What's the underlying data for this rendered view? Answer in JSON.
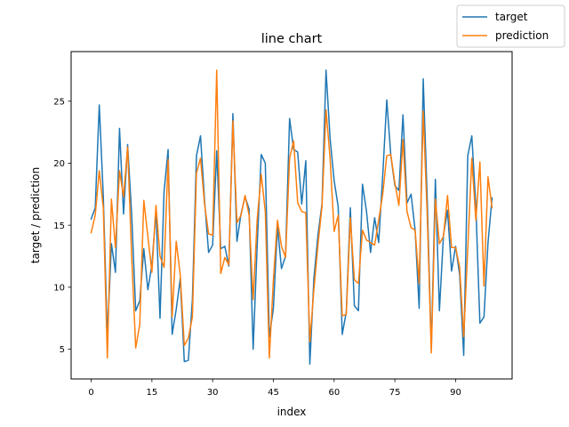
{
  "chart_data": {
    "type": "line",
    "title": "line chart",
    "xlabel": "index",
    "ylabel": "target / prediction",
    "xlim": [
      -4.95,
      103.95
    ],
    "ylim": [
      2.6,
      29.0
    ],
    "xticks": [
      0,
      15,
      30,
      45,
      60,
      75,
      90
    ],
    "yticks": [
      5,
      10,
      15,
      20,
      25
    ],
    "grid": false,
    "legend_position": "top-right (outside plot area)",
    "series": [
      {
        "name": "target",
        "color": "#1f77b4",
        "x": [
          0,
          1,
          2,
          3,
          4,
          5,
          6,
          7,
          8,
          9,
          10,
          11,
          12,
          13,
          14,
          15,
          16,
          17,
          18,
          19,
          20,
          21,
          22,
          23,
          24,
          25,
          26,
          27,
          28,
          29,
          30,
          31,
          32,
          33,
          34,
          35,
          36,
          37,
          38,
          39,
          40,
          41,
          42,
          43,
          44,
          45,
          46,
          47,
          48,
          49,
          50,
          51,
          52,
          53,
          54,
          55,
          56,
          57,
          58,
          59,
          60,
          61,
          62,
          63,
          64,
          65,
          66,
          67,
          68,
          69,
          70,
          71,
          72,
          73,
          74,
          75,
          76,
          77,
          78,
          79,
          80,
          81,
          82,
          83,
          84,
          85,
          86,
          87,
          88,
          89,
          90,
          91,
          92,
          93,
          94,
          95,
          96,
          97,
          98,
          99
        ],
        "values": [
          15.5,
          16.4,
          24.7,
          17.3,
          6.0,
          13.5,
          11.2,
          22.8,
          15.9,
          21.5,
          15.9,
          8.1,
          8.9,
          13.1,
          9.8,
          11.8,
          16.2,
          7.5,
          17.7,
          21.1,
          6.2,
          8.2,
          10.7,
          4.0,
          4.1,
          9.0,
          20.6,
          22.2,
          17.0,
          12.8,
          13.4,
          21.0,
          13.1,
          13.3,
          11.7,
          24.0,
          13.7,
          15.9,
          17.3,
          16.3,
          5.0,
          13.4,
          20.7,
          20.0,
          6.0,
          8.3,
          14.9,
          11.5,
          12.5,
          23.6,
          21.1,
          20.9,
          16.7,
          20.2,
          3.8,
          10.7,
          14.2,
          16.7,
          27.5,
          22.0,
          18.6,
          16.5,
          6.2,
          8.0,
          16.4,
          8.5,
          8.1,
          18.3,
          16.1,
          12.8,
          15.6,
          13.6,
          19.0,
          25.1,
          20.6,
          18.2,
          17.8,
          23.9,
          16.8,
          17.5,
          14.6,
          8.3,
          26.8,
          17.0,
          5.0,
          18.7,
          8.1,
          14.2,
          16.2,
          11.3,
          13.3,
          11.0,
          4.5,
          20.6,
          22.2,
          16.5,
          7.1,
          7.6,
          13.6,
          17.2
        ]
      },
      {
        "name": "prediction",
        "color": "#ff7f0e",
        "x": [
          0,
          1,
          2,
          3,
          4,
          5,
          6,
          7,
          8,
          9,
          10,
          11,
          12,
          13,
          14,
          15,
          16,
          17,
          18,
          19,
          20,
          21,
          22,
          23,
          24,
          25,
          26,
          27,
          28,
          29,
          30,
          31,
          32,
          33,
          34,
          35,
          36,
          37,
          38,
          39,
          40,
          41,
          42,
          43,
          44,
          45,
          46,
          47,
          48,
          49,
          50,
          51,
          52,
          53,
          54,
          55,
          56,
          57,
          58,
          59,
          60,
          61,
          62,
          63,
          64,
          65,
          66,
          67,
          68,
          69,
          70,
          71,
          72,
          73,
          74,
          75,
          76,
          77,
          78,
          79,
          80,
          81,
          82,
          83,
          84,
          85,
          86,
          87,
          88,
          89,
          90,
          91,
          92,
          93,
          94,
          95,
          96,
          97,
          98,
          99
        ],
        "values": [
          14.4,
          15.8,
          19.4,
          16.4,
          4.3,
          17.1,
          13.2,
          19.4,
          17.3,
          21.3,
          12.5,
          5.1,
          7.0,
          17.0,
          14.1,
          11.2,
          16.6,
          12.5,
          11.6,
          20.3,
          7.6,
          13.7,
          11.0,
          5.3,
          5.9,
          7.6,
          19.2,
          20.4,
          16.7,
          14.3,
          14.2,
          27.5,
          11.1,
          12.4,
          11.8,
          23.4,
          15.2,
          15.8,
          17.4,
          15.8,
          9.0,
          15.5,
          19.1,
          16.1,
          4.3,
          10.6,
          15.4,
          13.3,
          12.4,
          20.4,
          21.8,
          16.8,
          16.1,
          16.0,
          5.6,
          9.8,
          13.4,
          16.5,
          24.3,
          20.4,
          14.5,
          15.8,
          7.7,
          7.8,
          15.6,
          10.6,
          10.3,
          14.6,
          13.8,
          13.6,
          13.4,
          15.4,
          17.5,
          20.6,
          20.7,
          18.4,
          16.6,
          21.9,
          16.1,
          14.8,
          14.6,
          10.3,
          24.2,
          15.7,
          4.7,
          17.1,
          13.5,
          14.1,
          17.4,
          13.2,
          13.2,
          11.6,
          6.0,
          13.1,
          20.4,
          15.4,
          20.1,
          10.1,
          18.9,
          16.4
        ]
      }
    ]
  }
}
